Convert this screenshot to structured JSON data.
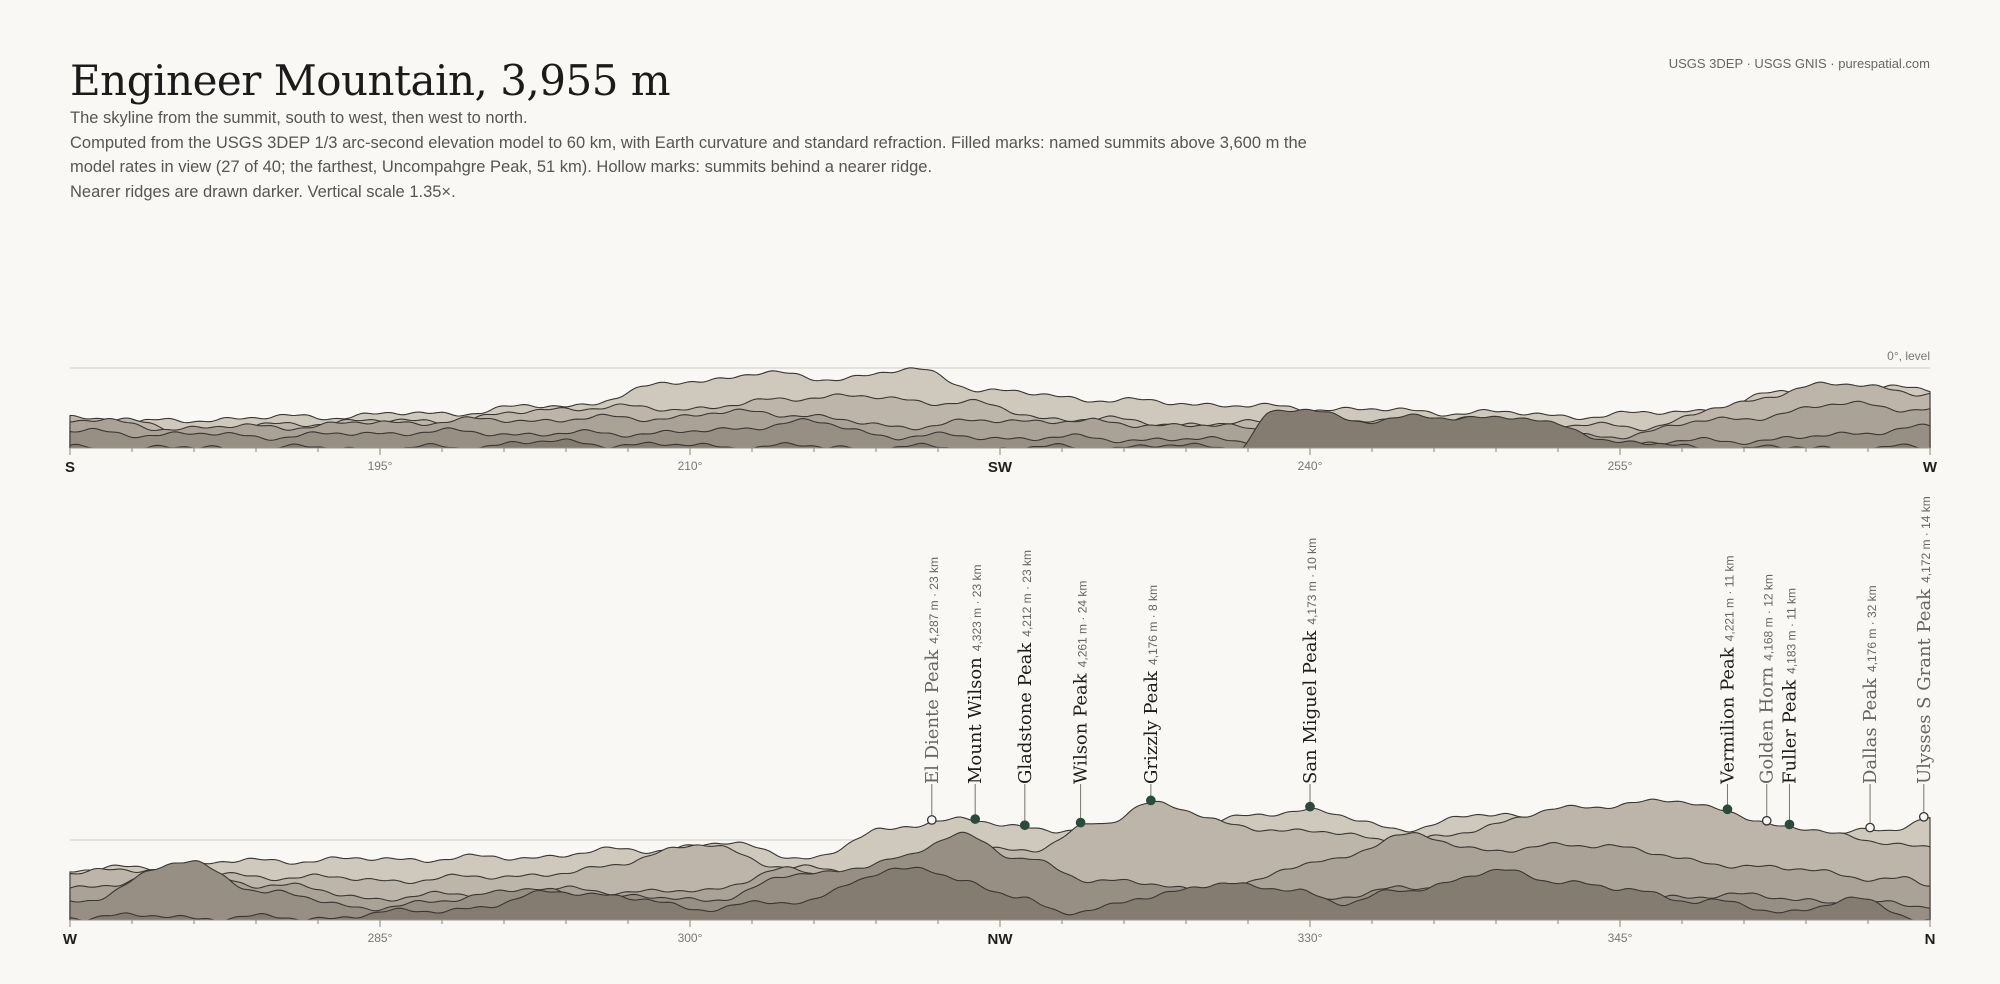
{
  "header": {
    "title": "Engineer Mountain, 3,955 m",
    "subtitle_1": "The skyline from the summit, south to west, then west to north.",
    "subtitle_2": "Computed from the USGS 3DEP 1/3 arc-second elevation model to 60 km, with Earth curvature and standard refraction. Filled marks: named summits above 3,600 m the model rates in view (27 of 40; the farthest, Uncompahgre Peak, 51 km). Hollow marks: summits behind a nearer ridge.",
    "subtitle_3": "Nearer ridges are drawn darker. Vertical scale 1.35×.",
    "source": "USGS 3DEP · USGS GNIS · purespatial.com"
  },
  "colors": {
    "background": "#f9f8f4",
    "far_ridge": "#cfc8bd",
    "near_ridge": "#857c71",
    "ridge_line": "#3a3632",
    "visible_marker": "#2c4a3a",
    "horizon_line": "#cfcbc3"
  },
  "chart_data": [
    {
      "type": "area",
      "panel": "south-to-west",
      "x_range_deg": [
        180,
        270
      ],
      "horizon_label": "0°, level",
      "ticks": [
        {
          "deg": 180,
          "label": "S",
          "cardinal": true
        },
        {
          "deg": 195,
          "label": "195°",
          "cardinal": false
        },
        {
          "deg": 210,
          "label": "210°",
          "cardinal": false
        },
        {
          "deg": 225,
          "label": "SW",
          "cardinal": true
        },
        {
          "deg": 240,
          "label": "240°",
          "cardinal": false
        },
        {
          "deg": 255,
          "label": "255°",
          "cardinal": false
        },
        {
          "deg": 270,
          "label": "W",
          "cardinal": true
        }
      ],
      "peaks": []
    },
    {
      "type": "area",
      "panel": "west-to-north",
      "x_range_deg": [
        270,
        360
      ],
      "horizon_label": "",
      "ticks": [
        {
          "deg": 270,
          "label": "W",
          "cardinal": true
        },
        {
          "deg": 285,
          "label": "285°",
          "cardinal": false
        },
        {
          "deg": 300,
          "label": "300°",
          "cardinal": false
        },
        {
          "deg": 315,
          "label": "NW",
          "cardinal": true
        },
        {
          "deg": 330,
          "label": "330°",
          "cardinal": false
        },
        {
          "deg": 345,
          "label": "345°",
          "cardinal": false
        },
        {
          "deg": 360,
          "label": "N",
          "cardinal": true
        }
      ],
      "peaks": [
        {
          "name": "El Diente Peak",
          "detail": "4,287 m · 23 km",
          "azimuth": 311.7,
          "visible": false
        },
        {
          "name": "Mount Wilson",
          "detail": "4,323 m · 23 km",
          "azimuth": 313.8,
          "visible": true
        },
        {
          "name": "Gladstone Peak",
          "detail": "4,212 m · 23 km",
          "azimuth": 316.2,
          "visible": true
        },
        {
          "name": "Wilson Peak",
          "detail": "4,261 m · 24 km",
          "azimuth": 318.9,
          "visible": true
        },
        {
          "name": "Grizzly Peak",
          "detail": "4,176 m · 8 km",
          "azimuth": 322.3,
          "visible": true
        },
        {
          "name": "San Miguel Peak",
          "detail": "4,173 m · 10 km",
          "azimuth": 330.0,
          "visible": true
        },
        {
          "name": "Vermilion Peak",
          "detail": "4,221 m · 11 km",
          "azimuth": 350.2,
          "visible": true
        },
        {
          "name": "Golden Horn",
          "detail": "4,168 m · 12 km",
          "azimuth": 352.1,
          "visible": false
        },
        {
          "name": "Fuller Peak",
          "detail": "4,183 m · 11 km",
          "azimuth": 353.2,
          "visible": true
        },
        {
          "name": "Dallas Peak",
          "detail": "4,176 m · 32 km",
          "azimuth": 357.1,
          "visible": false
        },
        {
          "name": "Ulysses S Grant Peak",
          "detail": "4,172 m · 14 km",
          "azimuth": 359.7,
          "visible": false
        }
      ]
    }
  ]
}
